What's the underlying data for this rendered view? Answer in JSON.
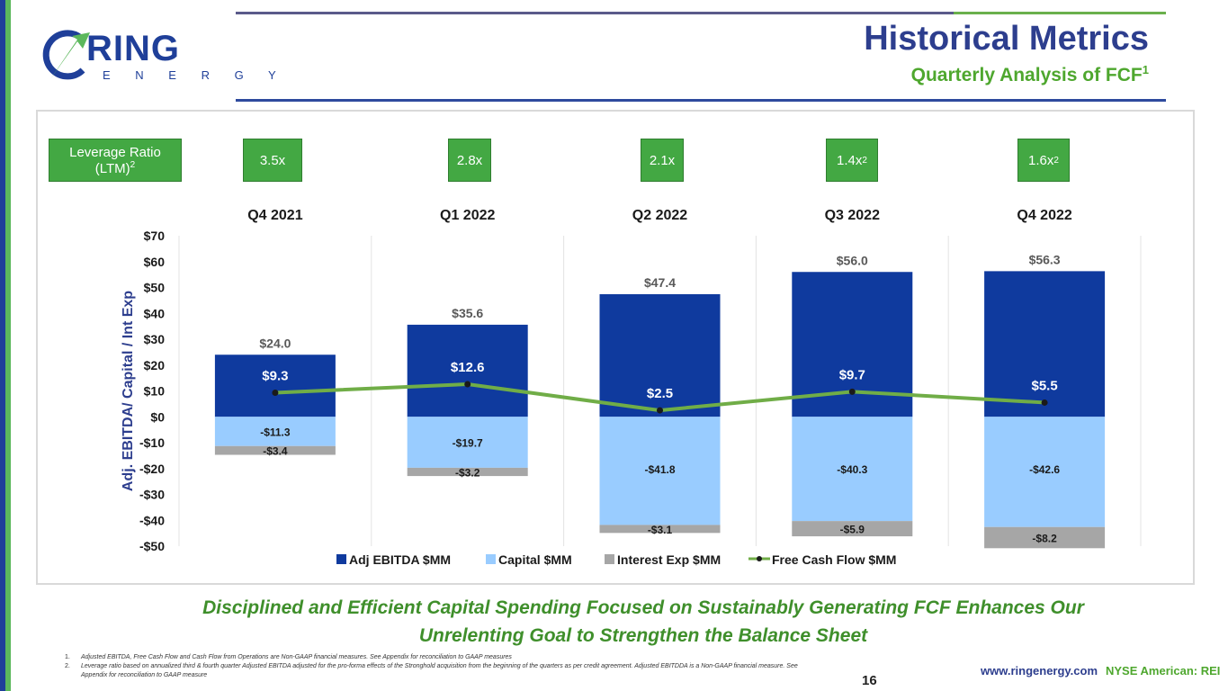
{
  "header": {
    "title": "Historical Metrics",
    "subtitle": "Quarterly Analysis of FCF",
    "subtitle_sup": "1"
  },
  "logo": {
    "name": "RING",
    "tagline": "E N E R G Y"
  },
  "leverage": {
    "label_line1": "Leverage Ratio",
    "label_line2": "(LTM)",
    "label_sup": "2",
    "values": [
      {
        "text": "3.5x",
        "sup": ""
      },
      {
        "text": "2.8x",
        "sup": ""
      },
      {
        "text": "2.1x",
        "sup": ""
      },
      {
        "text": "1.4x",
        "sup": "2"
      },
      {
        "text": "1.6x",
        "sup": "2"
      }
    ]
  },
  "chart_data": {
    "type": "bar",
    "stacked": true,
    "categories": [
      "Q4 2021",
      "Q1 2022",
      "Q2 2022",
      "Q3 2022",
      "Q4 2022"
    ],
    "series": [
      {
        "name": "Adj EBITDA $MM",
        "type": "bar",
        "color": "#0f3a9e",
        "values": [
          24.0,
          35.6,
          47.4,
          56.0,
          56.3
        ],
        "labels": [
          "$24.0",
          "$35.6",
          "$47.4",
          "$56.0",
          "$56.3"
        ]
      },
      {
        "name": "Capital $MM",
        "type": "bar",
        "color": "#99ccff",
        "values": [
          -11.3,
          -19.7,
          -41.8,
          -40.3,
          -42.6
        ],
        "labels": [
          "-$11.3",
          "-$19.7",
          "-$41.8",
          "-$40.3",
          "-$42.6"
        ]
      },
      {
        "name": "Interest Exp $MM",
        "type": "bar",
        "color": "#a6a6a6",
        "values": [
          -3.4,
          -3.2,
          -3.1,
          -5.9,
          -8.2
        ],
        "labels": [
          "-$3.4",
          "-$3.2",
          "-$3.1",
          "-$5.9",
          "-$8.2"
        ]
      },
      {
        "name": "Free Cash Flow $MM",
        "type": "line",
        "color": "#70ad47",
        "values": [
          9.3,
          12.6,
          2.5,
          9.7,
          5.5
        ],
        "labels": [
          "$9.3",
          "$12.6",
          "$2.5",
          "$9.7",
          "$5.5"
        ]
      }
    ],
    "ylabel": "Adj. EBITDA/ Capital / Int Exp",
    "ylim": [
      -50,
      70
    ],
    "yticks": [
      70,
      60,
      50,
      40,
      30,
      20,
      10,
      0,
      -10,
      -20,
      -30,
      -40,
      -50
    ],
    "ytick_labels": [
      "$70",
      "$60",
      "$50",
      "$40",
      "$30",
      "$20",
      "$10",
      "$0",
      "-$10",
      "-$20",
      "-$30",
      "-$40",
      "-$50"
    ],
    "grid": "vertical",
    "legend": "bottom"
  },
  "footer": {
    "line1": "Disciplined and Efficient Capital Spending Focused on Sustainably Generating FCF Enhances Our",
    "line2": "Unrelenting Goal to Strengthen the Balance Sheet"
  },
  "footnotes": [
    {
      "num": "1.",
      "text": "Adjusted EBITDA, Free Cash Flow and Cash Flow from Operations are Non-GAAP financial measures. See Appendix for reconciliation to GAAP measures"
    },
    {
      "num": "2.",
      "text": "Leverage ratio based on annualized third & fourth quarter Adjusted EBITDA adjusted for the pro-forma effects of the Stronghold acquisition from the beginning of the quarters as per credit agreement. Adjusted EBITDDA is a Non-GAAP financial measure. See Appendix for reconciliation to GAAP measure"
    }
  ],
  "page_number": "16",
  "website": "www.ringenergy.com",
  "exchange": "NYSE American: REI"
}
